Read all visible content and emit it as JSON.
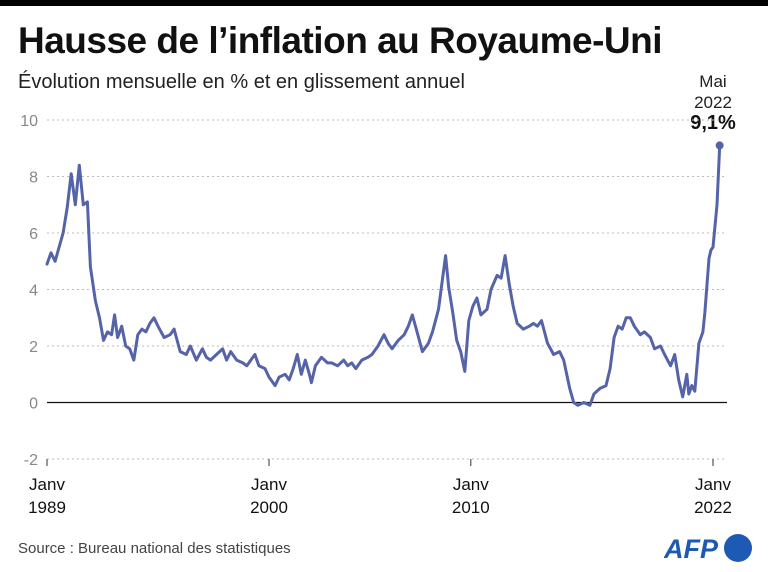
{
  "header": {
    "title": "Hausse de l’inflation au Royaume-Uni",
    "subtitle": "Évolution mensuelle en % et en glissement annuel"
  },
  "annotation": {
    "month": "Mai",
    "year": "2022",
    "value": "9,1%"
  },
  "footer": {
    "source": "Source : Bureau national des statistiques",
    "logo": "AFP"
  },
  "colors": {
    "line": "#5563a8",
    "logo": "#1e5ab4"
  },
  "chart_data": {
    "type": "line",
    "title": "Hausse de l’inflation au Royaume-Uni",
    "subtitle": "Évolution mensuelle en % et en glissement annuel",
    "xlabel": "",
    "ylabel": "",
    "ylim": [
      -2,
      10
    ],
    "yticks": [
      -2,
      0,
      2,
      4,
      6,
      8,
      10
    ],
    "ytick_labels": [
      "-2",
      "0",
      "2",
      "4",
      "6",
      "8",
      "10"
    ],
    "xticks": [
      {
        "year": 1989,
        "label": [
          "Janv",
          "1989"
        ]
      },
      {
        "year": 2000,
        "label": [
          "Janv",
          "2000"
        ]
      },
      {
        "year": 2010,
        "label": [
          "Janv",
          "2010"
        ]
      },
      {
        "year": 2022,
        "label": [
          "Janv",
          "2022"
        ]
      }
    ],
    "grid": true,
    "series": [
      {
        "name": "Inflation (%)",
        "x_start": "1989-01",
        "x_end": "2022-05",
        "points": [
          [
            1989.0,
            4.9
          ],
          [
            1989.2,
            5.3
          ],
          [
            1989.4,
            5.0
          ],
          [
            1989.6,
            5.5
          ],
          [
            1989.8,
            6.0
          ],
          [
            1990.0,
            6.9
          ],
          [
            1990.2,
            8.1
          ],
          [
            1990.4,
            7.0
          ],
          [
            1990.6,
            8.4
          ],
          [
            1990.8,
            7.0
          ],
          [
            1991.0,
            7.1
          ],
          [
            1991.15,
            4.8
          ],
          [
            1991.4,
            3.6
          ],
          [
            1991.6,
            3.0
          ],
          [
            1991.8,
            2.2
          ],
          [
            1992.0,
            2.5
          ],
          [
            1992.2,
            2.4
          ],
          [
            1992.35,
            3.1
          ],
          [
            1992.5,
            2.3
          ],
          [
            1992.7,
            2.7
          ],
          [
            1992.9,
            2.0
          ],
          [
            1993.1,
            1.9
          ],
          [
            1993.3,
            1.5
          ],
          [
            1993.5,
            2.4
          ],
          [
            1993.7,
            2.6
          ],
          [
            1993.9,
            2.5
          ],
          [
            1994.1,
            2.8
          ],
          [
            1994.3,
            3.0
          ],
          [
            1994.5,
            2.7
          ],
          [
            1994.8,
            2.3
          ],
          [
            1995.1,
            2.4
          ],
          [
            1995.3,
            2.6
          ],
          [
            1995.6,
            1.8
          ],
          [
            1995.9,
            1.7
          ],
          [
            1996.1,
            2.0
          ],
          [
            1996.4,
            1.5
          ],
          [
            1996.7,
            1.9
          ],
          [
            1996.9,
            1.6
          ],
          [
            1997.1,
            1.5
          ],
          [
            1997.4,
            1.7
          ],
          [
            1997.7,
            1.9
          ],
          [
            1997.9,
            1.5
          ],
          [
            1998.1,
            1.8
          ],
          [
            1998.4,
            1.5
          ],
          [
            1998.7,
            1.4
          ],
          [
            1998.9,
            1.3
          ],
          [
            1999.1,
            1.5
          ],
          [
            1999.3,
            1.7
          ],
          [
            1999.5,
            1.3
          ],
          [
            1999.8,
            1.2
          ],
          [
            2000.0,
            0.9
          ],
          [
            2000.3,
            0.6
          ],
          [
            2000.5,
            0.9
          ],
          [
            2000.8,
            1.0
          ],
          [
            2001.0,
            0.8
          ],
          [
            2001.2,
            1.2
          ],
          [
            2001.4,
            1.7
          ],
          [
            2001.6,
            1.0
          ],
          [
            2001.8,
            1.5
          ],
          [
            2002.0,
            1.0
          ],
          [
            2002.1,
            0.7
          ],
          [
            2002.3,
            1.3
          ],
          [
            2002.6,
            1.6
          ],
          [
            2002.9,
            1.4
          ],
          [
            2003.1,
            1.4
          ],
          [
            2003.4,
            1.3
          ],
          [
            2003.7,
            1.5
          ],
          [
            2003.9,
            1.3
          ],
          [
            2004.1,
            1.4
          ],
          [
            2004.3,
            1.2
          ],
          [
            2004.6,
            1.5
          ],
          [
            2004.9,
            1.6
          ],
          [
            2005.1,
            1.7
          ],
          [
            2005.4,
            2.0
          ],
          [
            2005.7,
            2.4
          ],
          [
            2005.9,
            2.1
          ],
          [
            2006.1,
            1.9
          ],
          [
            2006.4,
            2.2
          ],
          [
            2006.7,
            2.4
          ],
          [
            2006.9,
            2.7
          ],
          [
            2007.1,
            3.1
          ],
          [
            2007.3,
            2.6
          ],
          [
            2007.6,
            1.8
          ],
          [
            2007.9,
            2.1
          ],
          [
            2008.1,
            2.5
          ],
          [
            2008.4,
            3.3
          ],
          [
            2008.6,
            4.4
          ],
          [
            2008.75,
            5.2
          ],
          [
            2008.9,
            4.1
          ],
          [
            2009.1,
            3.2
          ],
          [
            2009.3,
            2.2
          ],
          [
            2009.5,
            1.8
          ],
          [
            2009.7,
            1.1
          ],
          [
            2009.9,
            2.9
          ],
          [
            2010.1,
            3.4
          ],
          [
            2010.3,
            3.7
          ],
          [
            2010.5,
            3.1
          ],
          [
            2010.8,
            3.3
          ],
          [
            2011.0,
            4.0
          ],
          [
            2011.3,
            4.5
          ],
          [
            2011.5,
            4.4
          ],
          [
            2011.7,
            5.2
          ],
          [
            2011.9,
            4.2
          ],
          [
            2012.1,
            3.4
          ],
          [
            2012.3,
            2.8
          ],
          [
            2012.6,
            2.6
          ],
          [
            2012.9,
            2.7
          ],
          [
            2013.1,
            2.8
          ],
          [
            2013.3,
            2.7
          ],
          [
            2013.5,
            2.9
          ],
          [
            2013.8,
            2.1
          ],
          [
            2014.1,
            1.7
          ],
          [
            2014.4,
            1.8
          ],
          [
            2014.6,
            1.5
          ],
          [
            2014.9,
            0.5
          ],
          [
            2015.1,
            0.0
          ],
          [
            2015.3,
            -0.1
          ],
          [
            2015.6,
            0.0
          ],
          [
            2015.9,
            -0.1
          ],
          [
            2016.1,
            0.3
          ],
          [
            2016.4,
            0.5
          ],
          [
            2016.7,
            0.6
          ],
          [
            2016.9,
            1.2
          ],
          [
            2017.1,
            2.3
          ],
          [
            2017.3,
            2.7
          ],
          [
            2017.5,
            2.6
          ],
          [
            2017.7,
            3.0
          ],
          [
            2017.9,
            3.0
          ],
          [
            2018.1,
            2.7
          ],
          [
            2018.4,
            2.4
          ],
          [
            2018.6,
            2.5
          ],
          [
            2018.9,
            2.3
          ],
          [
            2019.1,
            1.9
          ],
          [
            2019.4,
            2.0
          ],
          [
            2019.6,
            1.7
          ],
          [
            2019.9,
            1.3
          ],
          [
            2020.1,
            1.7
          ],
          [
            2020.3,
            0.8
          ],
          [
            2020.5,
            0.2
          ],
          [
            2020.7,
            1.0
          ],
          [
            2020.8,
            0.3
          ],
          [
            2020.95,
            0.6
          ],
          [
            2021.1,
            0.4
          ],
          [
            2021.3,
            2.1
          ],
          [
            2021.5,
            2.5
          ],
          [
            2021.6,
            3.2
          ],
          [
            2021.8,
            5.1
          ],
          [
            2021.9,
            5.4
          ],
          [
            2022.0,
            5.5
          ],
          [
            2022.2,
            7.0
          ],
          [
            2022.33,
            9.1
          ]
        ]
      }
    ],
    "annotations": [
      {
        "x": "2022-05",
        "label": "Mai 2022",
        "value": 9.1,
        "text": "9,1%"
      }
    ],
    "legend": "none"
  }
}
